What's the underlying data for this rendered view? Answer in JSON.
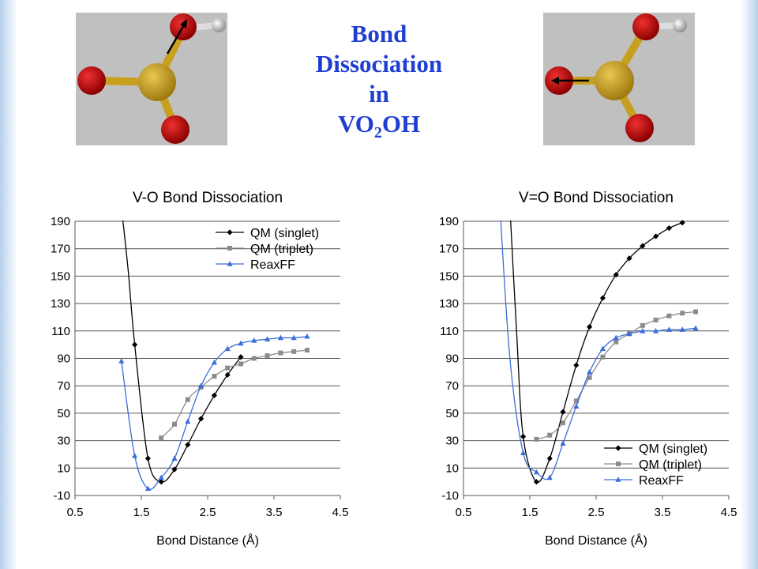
{
  "page_title": {
    "lines": [
      "Bond",
      "Dissociation",
      "in"
    ],
    "formula_prefix": "VO",
    "formula_sub": "2",
    "formula_suffix": "OH"
  },
  "colors": {
    "title": "#1f3fd0",
    "singlet": "#000000",
    "triplet": "#8c8c8c",
    "reaxff": "#3a6fd8",
    "grid": "#555555",
    "molecule_bg": "#c0c0c0",
    "vanadium": "#c8a020",
    "oxygen": "#c81010",
    "hydrogen": "#c8c8c8"
  },
  "chart_data": [
    {
      "type": "line",
      "title": "V-O Bond Dissociation",
      "xlabel": "Bond Distance (Å)",
      "ylabel": "",
      "xlim": [
        0.5,
        4.5
      ],
      "ylim": [
        -10,
        190
      ],
      "xticks": [
        "0.5",
        "1.5",
        "2.5",
        "3.5",
        "4.5"
      ],
      "yticks": [
        "190",
        "170",
        "150",
        "130",
        "110",
        "90",
        "70",
        "50",
        "30",
        "10",
        "-10"
      ],
      "grid": "horizontal",
      "legend_position": "top-right",
      "series": [
        {
          "name": "QM (singlet)",
          "marker": "diamond",
          "color": "#000000",
          "x": [
            1.4,
            1.6,
            1.8,
            2.0,
            2.2,
            2.4,
            2.6,
            2.8,
            3.0
          ],
          "y": [
            100,
            17,
            0,
            9,
            27,
            46,
            63,
            78,
            91
          ],
          "lead_in": [
            [
              1.2,
              200
            ],
            [
              1.3,
              155
            ]
          ]
        },
        {
          "name": "QM (triplet)",
          "marker": "square",
          "color": "#8c8c8c",
          "x": [
            1.8,
            2.0,
            2.2,
            2.4,
            2.6,
            2.8,
            3.0,
            3.2,
            3.4,
            3.6,
            3.8,
            4.0
          ],
          "y": [
            32,
            42,
            60,
            69,
            77,
            83,
            86,
            90,
            92,
            94,
            95,
            96
          ],
          "lead_in": []
        },
        {
          "name": "ReaxFF",
          "marker": "triangle",
          "color": "#3a6fd8",
          "x": [
            1.2,
            1.4,
            1.6,
            1.8,
            2.0,
            2.2,
            2.4,
            2.6,
            2.8,
            3.0,
            3.2,
            3.4,
            3.6,
            3.8,
            4.0
          ],
          "y": [
            88,
            19,
            -5,
            3,
            17,
            44,
            70,
            87,
            97,
            101,
            103,
            104,
            105,
            105,
            106
          ],
          "lead_in": []
        }
      ]
    },
    {
      "type": "line",
      "title": "V=O Bond Dissociation",
      "xlabel": "Bond Distance (Å)",
      "ylabel": "",
      "xlim": [
        0.5,
        4.5
      ],
      "ylim": [
        -10,
        190
      ],
      "xticks": [
        "0.5",
        "1.5",
        "2.5",
        "3.5",
        "4.5"
      ],
      "yticks": [
        "190",
        "170",
        "150",
        "130",
        "110",
        "90",
        "70",
        "50",
        "30",
        "10",
        "-10"
      ],
      "grid": "horizontal",
      "legend_position": "bottom-right",
      "series": [
        {
          "name": "QM (singlet)",
          "marker": "diamond",
          "color": "#000000",
          "x": [
            1.4,
            1.6,
            1.8,
            2.0,
            2.2,
            2.4,
            2.6,
            2.8,
            3.0,
            3.2,
            3.4,
            3.6,
            3.8
          ],
          "y": [
            33,
            0,
            17,
            51,
            85,
            113,
            134,
            151,
            163,
            172,
            179,
            185,
            189
          ],
          "lead_in": [
            [
              1.2,
              200
            ],
            [
              1.3,
              110
            ]
          ]
        },
        {
          "name": "QM (triplet)",
          "marker": "square",
          "color": "#8c8c8c",
          "x": [
            1.6,
            1.8,
            2.0,
            2.2,
            2.4,
            2.6,
            2.8,
            3.0,
            3.2,
            3.4,
            3.6,
            3.8,
            4.0
          ],
          "y": [
            31,
            34,
            43,
            59,
            76,
            91,
            102,
            108,
            114,
            118,
            121,
            123,
            124
          ],
          "lead_in": []
        },
        {
          "name": "ReaxFF",
          "marker": "triangle",
          "color": "#3a6fd8",
          "x": [
            1.4,
            1.6,
            1.8,
            2.0,
            2.2,
            2.4,
            2.6,
            2.8,
            3.0,
            3.2,
            3.4,
            3.6,
            3.8,
            4.0
          ],
          "y": [
            21,
            7,
            3,
            28,
            55,
            80,
            97,
            105,
            108,
            110,
            110,
            111,
            111,
            112
          ],
          "lead_in": [
            [
              1.05,
              200
            ],
            [
              1.2,
              90
            ]
          ]
        }
      ]
    }
  ]
}
